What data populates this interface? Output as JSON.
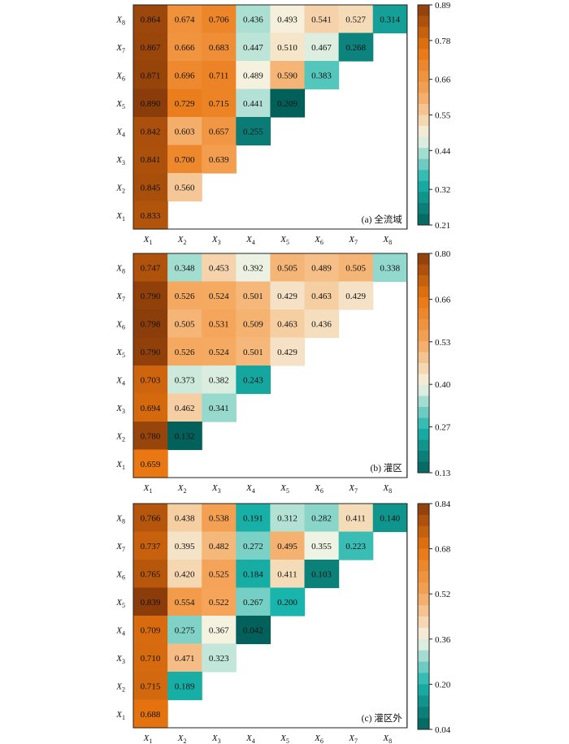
{
  "chart_data": [
    {
      "type": "heatmap",
      "panel_label": "(a) 全流域",
      "variables": [
        "X1",
        "X2",
        "X3",
        "X4",
        "X5",
        "X6",
        "X7",
        "X8"
      ],
      "x_tick_labels": [
        {
          "v": "X",
          "s": "1"
        },
        {
          "v": "X",
          "s": "2"
        },
        {
          "v": "X",
          "s": "3"
        },
        {
          "v": "X",
          "s": "4"
        },
        {
          "v": "X",
          "s": "5"
        },
        {
          "v": "X",
          "s": "6"
        },
        {
          "v": "X",
          "s": "7"
        },
        {
          "v": "X",
          "s": "8"
        }
      ],
      "y_tick_labels": [
        {
          "v": "X",
          "s": "1"
        },
        {
          "v": "X",
          "s": "2"
        },
        {
          "v": "X",
          "s": "3"
        },
        {
          "v": "X",
          "s": "4"
        },
        {
          "v": "X",
          "s": "5"
        },
        {
          "v": "X",
          "s": "6"
        },
        {
          "v": "X",
          "s": "7"
        },
        {
          "v": "X",
          "s": "8"
        }
      ],
      "rows": [
        {
          "row": "X8",
          "values": [
            0.864,
            0.674,
            0.706,
            0.436,
            0.493,
            0.541,
            0.527,
            0.314
          ]
        },
        {
          "row": "X7",
          "values": [
            0.867,
            0.666,
            0.683,
            0.447,
            0.51,
            0.467,
            0.268
          ]
        },
        {
          "row": "X6",
          "values": [
            0.871,
            0.696,
            0.711,
            0.489,
            0.59,
            0.383
          ]
        },
        {
          "row": "X5",
          "values": [
            0.89,
            0.729,
            0.715,
            0.441,
            0.209
          ]
        },
        {
          "row": "X4",
          "values": [
            0.842,
            0.603,
            0.657,
            0.255
          ]
        },
        {
          "row": "X3",
          "values": [
            0.841,
            0.7,
            0.639
          ]
        },
        {
          "row": "X2",
          "values": [
            0.845,
            0.56
          ]
        },
        {
          "row": "X1",
          "values": [
            0.833
          ]
        }
      ],
      "colorbar": {
        "min": 0.21,
        "max": 0.89,
        "ticks": [
          0.89,
          0.78,
          0.66,
          0.55,
          0.44,
          0.32,
          0.21
        ],
        "tick_labels": [
          "0.89",
          "0.78",
          "0.66",
          "0.55",
          "0.44",
          "0.32",
          "0.21"
        ]
      }
    },
    {
      "type": "heatmap",
      "panel_label": "(b) 灌区",
      "variables": [
        "X1",
        "X2",
        "X3",
        "X4",
        "X5",
        "X6",
        "X7",
        "X8"
      ],
      "x_tick_labels": [
        {
          "v": "X",
          "s": "1"
        },
        {
          "v": "X",
          "s": "2"
        },
        {
          "v": "X",
          "s": "3"
        },
        {
          "v": "X",
          "s": "4"
        },
        {
          "v": "X",
          "s": "5"
        },
        {
          "v": "X",
          "s": "6"
        },
        {
          "v": "X",
          "s": "7"
        },
        {
          "v": "X",
          "s": "8"
        }
      ],
      "y_tick_labels": [
        {
          "v": "X",
          "s": "1"
        },
        {
          "v": "X",
          "s": "2"
        },
        {
          "v": "X",
          "s": "3"
        },
        {
          "v": "X",
          "s": "4"
        },
        {
          "v": "X",
          "s": "5"
        },
        {
          "v": "X",
          "s": "6"
        },
        {
          "v": "X",
          "s": "7"
        },
        {
          "v": "X",
          "s": "8"
        }
      ],
      "rows": [
        {
          "row": "X8",
          "values": [
            0.747,
            0.348,
            0.453,
            0.392,
            0.505,
            0.489,
            0.505,
            0.338
          ]
        },
        {
          "row": "X7",
          "values": [
            0.79,
            0.526,
            0.524,
            0.501,
            0.429,
            0.463,
            0.429
          ]
        },
        {
          "row": "X6",
          "values": [
            0.798,
            0.505,
            0.531,
            0.509,
            0.463,
            0.436
          ]
        },
        {
          "row": "X5",
          "values": [
            0.79,
            0.526,
            0.524,
            0.501,
            0.429
          ]
        },
        {
          "row": "X4",
          "values": [
            0.703,
            0.373,
            0.382,
            0.243
          ]
        },
        {
          "row": "X3",
          "values": [
            0.694,
            0.462,
            0.341
          ]
        },
        {
          "row": "X2",
          "values": [
            0.78,
            0.132
          ]
        },
        {
          "row": "X1",
          "values": [
            0.659
          ]
        }
      ],
      "colorbar": {
        "min": 0.13,
        "max": 0.8,
        "ticks": [
          0.8,
          0.66,
          0.53,
          0.4,
          0.27,
          0.13
        ],
        "tick_labels": [
          "0.80",
          "0.66",
          "0.53",
          "0.40",
          "0.27",
          "0.13"
        ]
      }
    },
    {
      "type": "heatmap",
      "panel_label": "(c) 灌区外",
      "variables": [
        "X1",
        "X2",
        "X3",
        "X4",
        "X5",
        "X6",
        "X7",
        "X8"
      ],
      "x_tick_labels": [
        {
          "v": "X",
          "s": "1"
        },
        {
          "v": "X",
          "s": "2"
        },
        {
          "v": "X",
          "s": "3"
        },
        {
          "v": "X",
          "s": "4"
        },
        {
          "v": "X",
          "s": "5"
        },
        {
          "v": "X",
          "s": "6"
        },
        {
          "v": "X",
          "s": "7"
        },
        {
          "v": "X",
          "s": "8"
        }
      ],
      "y_tick_labels": [
        {
          "v": "X",
          "s": "1"
        },
        {
          "v": "X",
          "s": "2"
        },
        {
          "v": "X",
          "s": "3"
        },
        {
          "v": "X",
          "s": "4"
        },
        {
          "v": "X",
          "s": "5"
        },
        {
          "v": "X",
          "s": "6"
        },
        {
          "v": "X",
          "s": "7"
        },
        {
          "v": "X",
          "s": "8"
        }
      ],
      "rows": [
        {
          "row": "X8",
          "values": [
            0.766,
            0.438,
            0.538,
            0.191,
            0.312,
            0.282,
            0.411,
            0.14
          ]
        },
        {
          "row": "X7",
          "values": [
            0.737,
            0.395,
            0.482,
            0.272,
            0.495,
            0.355,
            0.223
          ]
        },
        {
          "row": "X6",
          "values": [
            0.765,
            0.42,
            0.525,
            0.184,
            0.411,
            0.103
          ]
        },
        {
          "row": "X5",
          "values": [
            0.839,
            0.554,
            0.522,
            0.267,
            0.2
          ]
        },
        {
          "row": "X4",
          "values": [
            0.709,
            0.275,
            0.367,
            0.042
          ]
        },
        {
          "row": "X3",
          "values": [
            0.71,
            0.471,
            0.323
          ]
        },
        {
          "row": "X2",
          "values": [
            0.715,
            0.189
          ]
        },
        {
          "row": "X1",
          "values": [
            0.688
          ]
        }
      ],
      "colorbar": {
        "min": 0.04,
        "max": 0.84,
        "ticks": [
          0.84,
          0.68,
          0.52,
          0.36,
          0.2,
          0.04
        ],
        "tick_labels": [
          "0.84",
          "0.68",
          "0.52",
          "0.36",
          "0.20",
          "0.04"
        ]
      }
    }
  ],
  "colormap": {
    "name": "teal-white-orange-brown",
    "stops": [
      "#02605a",
      "#19b4ac",
      "#f5f5e6",
      "#f5a55a",
      "#e8750f",
      "#8a3c0a"
    ]
  }
}
